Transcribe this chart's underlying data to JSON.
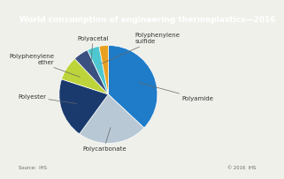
{
  "title": "World consumption of engineering thermoplastics—2016",
  "source": "Source:  IHS",
  "copyright": "© 2016  IHS",
  "slices": [
    {
      "label": "Polyamide",
      "value": 37,
      "color": "#1e7cc8"
    },
    {
      "label": "Polycarbonate",
      "value": 23,
      "color": "#b8c8d4"
    },
    {
      "label": "Polyester",
      "value": 20,
      "color": "#1a3a6e"
    },
    {
      "label": "Polyphenylene\nether",
      "value": 8,
      "color": "#bdd43a"
    },
    {
      "label": "Polyacetal",
      "value": 5,
      "color": "#3a5080"
    },
    {
      "label": "Polyphenylene\nsulfide",
      "value": 4,
      "color": "#4ec8d0"
    },
    {
      "label": "",
      "value": 3,
      "color": "#e8a020"
    }
  ],
  "title_bg": "#7090a8",
  "title_color": "white",
  "bg_color": "#f0f0eb",
  "label_fontsize": 5.0,
  "title_fontsize": 6.5,
  "startangle": 90
}
